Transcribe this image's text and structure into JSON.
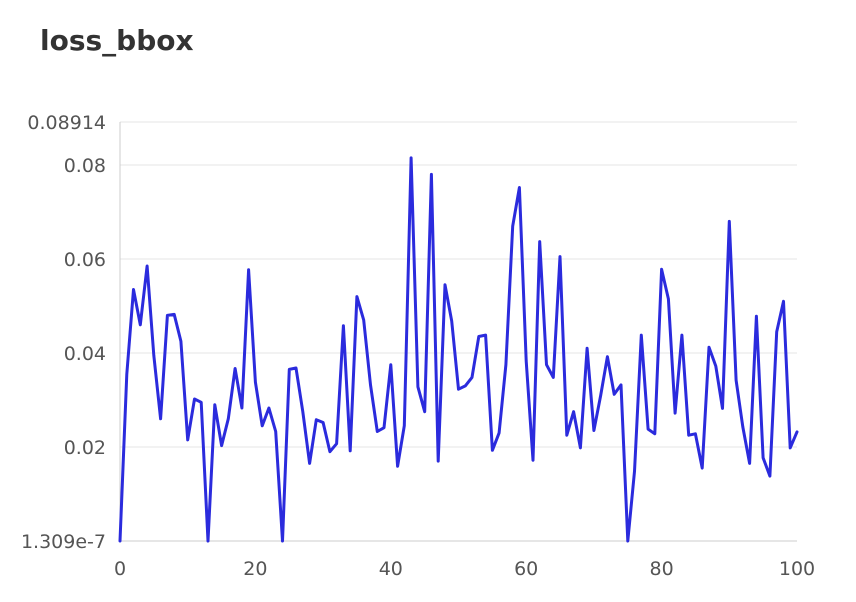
{
  "chart_data": {
    "type": "line",
    "title": "loss_bbox",
    "xlabel": "",
    "ylabel": "",
    "xlim": [
      0,
      100
    ],
    "ylim": [
      1.309e-07,
      0.08914
    ],
    "grid": true,
    "xticks": [
      0,
      20,
      40,
      60,
      80,
      100
    ],
    "xtick_labels": [
      "0",
      "20",
      "40",
      "60",
      "80",
      "100"
    ],
    "yticks": [
      1.309e-07,
      0.02,
      0.04,
      0.06,
      0.08,
      0.08914
    ],
    "ytick_labels": [
      "1.309e-7",
      "0.02",
      "0.04",
      "0.06",
      "0.08",
      "0.08914"
    ],
    "line_color": "#2b2bdd",
    "series": [
      {
        "x": [
          0,
          1,
          2,
          3,
          4,
          5,
          6,
          7,
          8,
          9,
          10,
          11,
          12,
          13,
          14,
          15,
          16,
          17,
          18,
          19,
          20,
          21,
          22,
          23,
          24,
          25,
          26,
          27,
          28,
          29,
          30,
          31,
          32,
          33,
          34,
          35,
          36,
          37,
          38,
          39,
          40,
          41,
          42,
          43,
          44,
          45,
          46,
          47,
          48,
          49,
          50,
          51,
          52,
          53,
          54,
          55,
          56,
          57,
          58,
          59,
          60,
          61,
          62,
          63,
          64,
          65,
          66,
          67,
          68,
          69,
          70,
          71,
          72,
          73,
          74,
          75,
          76,
          77,
          78,
          79,
          80,
          81,
          82,
          83,
          84,
          85,
          86,
          87,
          88,
          89,
          90,
          91,
          92,
          93,
          94,
          95,
          96,
          97,
          98,
          99,
          100
        ],
        "y": [
          0,
          0.0355,
          0.0535,
          0.046,
          0.0585,
          0.0395,
          0.026,
          0.048,
          0.0482,
          0.0425,
          0.0215,
          0.0302,
          0.0295,
          0,
          0.029,
          0.0203,
          0.026,
          0.0367,
          0.0283,
          0.0577,
          0.0338,
          0.0245,
          0.0283,
          0.0233,
          0,
          0.0365,
          0.0368,
          0.0275,
          0.0165,
          0.0258,
          0.0252,
          0.019,
          0.0207,
          0.0458,
          0.0192,
          0.052,
          0.047,
          0.0332,
          0.0233,
          0.0241,
          0.0375,
          0.0159,
          0.0245,
          0.0815,
          0.0328,
          0.0275,
          0.078,
          0.017,
          0.0545,
          0.0468,
          0.0323,
          0.033,
          0.0348,
          0.0435,
          0.0438,
          0.0193,
          0.023,
          0.0375,
          0.067,
          0.0752,
          0.0383,
          0.0172,
          0.0637,
          0.0375,
          0.0348,
          0.0605,
          0.0225,
          0.0275,
          0.0198,
          0.041,
          0.0235,
          0.031,
          0.0392,
          0.0312,
          0.0332,
          0,
          0.0148,
          0.0438,
          0.0238,
          0.0228,
          0.0578,
          0.0515,
          0.0272,
          0.0438,
          0.0225,
          0.0228,
          0.0155,
          0.0412,
          0.0372,
          0.0282,
          0.068,
          0.0342,
          0.0243,
          0.0165,
          0.0478,
          0.0177,
          0.0138,
          0.0445,
          0.051,
          0.0198,
          0.0232
        ]
      }
    ]
  }
}
